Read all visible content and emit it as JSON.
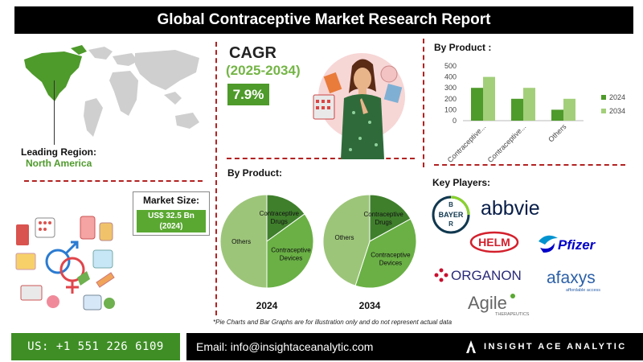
{
  "header": {
    "title": "Global Contraceptive Market Research Report"
  },
  "region": {
    "label": "Leading Region:",
    "value": "North America"
  },
  "cagr": {
    "title": "CAGR",
    "period": "(2025-2034)",
    "value": "7.9%"
  },
  "market_size": {
    "title": "Market Size:",
    "value_line1": "US$ 32.5 Bn",
    "value_line2": "(2024)"
  },
  "bar_section": {
    "title": "By Product :"
  },
  "pie_section": {
    "title": "By Product:"
  },
  "key_players": {
    "title": "Key Players:",
    "logos": [
      "BAYER",
      "abbvie",
      "HELM",
      "Pfizer",
      "ORGANON",
      "afaxys",
      "affordable access",
      "Agile",
      "THERAPEUTICS"
    ]
  },
  "footnote": "*Pie Charts and Bar Graphs are for illustration only and do not represent actual data",
  "footer": {
    "phone": "US: +1 551 226 6109",
    "email": "Email: info@insightaceanalytic.com",
    "brand": "INSIGHT ACE ANALYTIC"
  },
  "colors": {
    "dark_green": "#4e9a2b",
    "light_green": "#a3cf7a",
    "accent_red": "#b22222"
  },
  "chart_data": [
    {
      "type": "bar",
      "categories": [
        "Contraceptive...",
        "Contraceptive...",
        "Others"
      ],
      "series": [
        {
          "name": "2024",
          "values": [
            300,
            200,
            100
          ]
        },
        {
          "name": "2034",
          "values": [
            400,
            300,
            200
          ]
        }
      ],
      "ylim": [
        0,
        500
      ],
      "yticks": [
        "0",
        "100",
        "200",
        "300",
        "400",
        "500"
      ],
      "legend": "right",
      "colors": [
        "#4e9a2b",
        "#a3cf7a"
      ]
    },
    {
      "type": "pie",
      "title": "2024",
      "labels": [
        "Contraceptive Drugs",
        "Contraceptive Devices",
        "Others"
      ],
      "values": [
        15,
        35,
        50
      ],
      "colors": [
        "#3f7f2c",
        "#6ab045",
        "#9dc57a"
      ]
    },
    {
      "type": "pie",
      "title": "2034",
      "labels": [
        "Contraceptive Drugs",
        "Contraceptive Devices",
        "Others"
      ],
      "values": [
        17,
        38,
        45
      ],
      "colors": [
        "#3f7f2c",
        "#6ab045",
        "#9dc57a"
      ]
    }
  ]
}
